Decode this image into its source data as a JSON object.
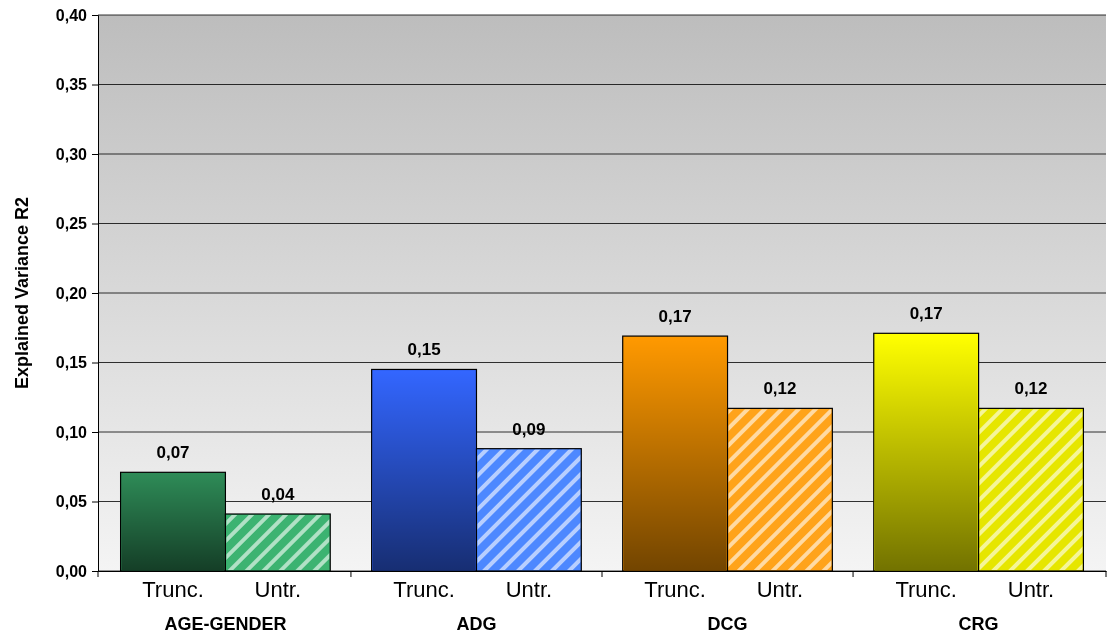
{
  "chart_data": {
    "type": "bar",
    "ylabel": "Explained Variance R2",
    "categories": [
      "AGE-GENDER",
      "ADG",
      "DCG",
      "CRG"
    ],
    "series": [
      {
        "name": "Trunc.",
        "colors": [
          "#2e8b57",
          "#3366ff",
          "#ff9900",
          "#ffff00"
        ],
        "values": [
          0.071,
          0.145,
          0.169,
          0.171
        ],
        "value_labels": [
          "0,07",
          "0,15",
          "0,17",
          "0,17"
        ]
      },
      {
        "name": "Untr.",
        "colors": [
          "#3cb371",
          "#4d88ff",
          "#ffa31a",
          "#e6e600"
        ],
        "values": [
          0.041,
          0.088,
          0.117,
          0.117
        ],
        "value_labels": [
          "0,04",
          "0,09",
          "0,12",
          "0,12"
        ]
      }
    ],
    "ylim": [
      0,
      0.4
    ],
    "yticks": [
      {
        "value": 0,
        "label": "0,00"
      },
      {
        "value": 0.05,
        "label": "0,05"
      },
      {
        "value": 0.1,
        "label": "0,10"
      },
      {
        "value": 0.15,
        "label": "0,15"
      },
      {
        "value": 0.2,
        "label": "0,20"
      },
      {
        "value": 0.25,
        "label": "0,25"
      },
      {
        "value": 0.3,
        "label": "0,30"
      },
      {
        "value": 0.35,
        "label": "0,35"
      },
      {
        "value": 0.4,
        "label": "0,40"
      }
    ],
    "grid": "y"
  }
}
